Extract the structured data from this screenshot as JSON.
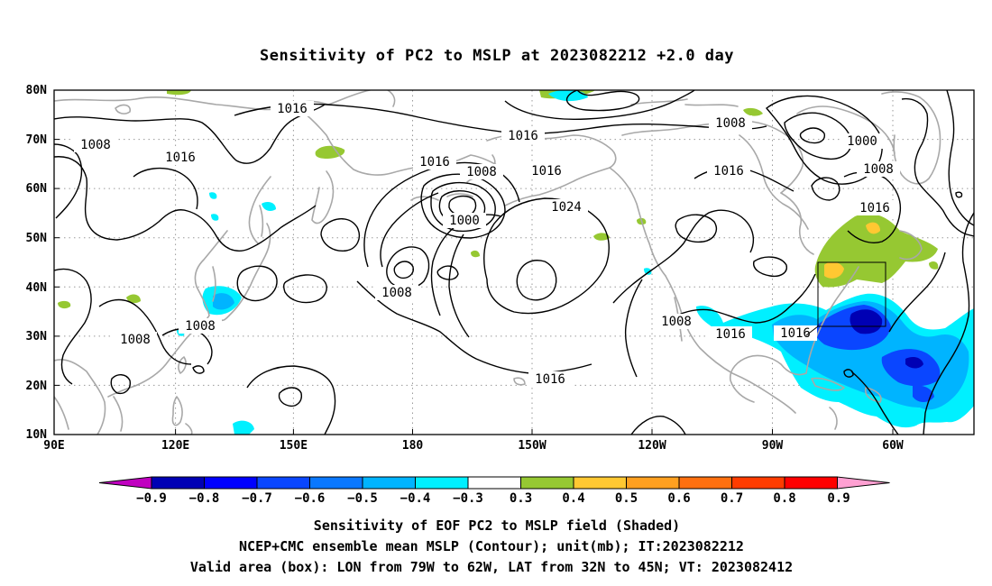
{
  "title": "Sensitivity of PC2 to MSLP at 2023082212 +2.0 day",
  "map": {
    "lon_range": [
      "90E",
      "40W"
    ],
    "lat_range": [
      "10N",
      "80N"
    ],
    "lat_ticks": [
      "80N",
      "70N",
      "60N",
      "50N",
      "40N",
      "30N",
      "20N",
      "10N"
    ],
    "lon_ticks": [
      "90E",
      "120E",
      "150E",
      "180",
      "150W",
      "120W",
      "90W",
      "60W"
    ],
    "valid_box": {
      "lon_from": -79,
      "lon_to": -62,
      "lat_from": 32,
      "lat_to": 45
    }
  },
  "contour_labels": [
    {
      "text": "1016"
    },
    {
      "text": "1008"
    },
    {
      "text": "1016"
    },
    {
      "text": "1016"
    },
    {
      "text": "1016"
    },
    {
      "text": "1008"
    },
    {
      "text": "1016"
    },
    {
      "text": "1008"
    },
    {
      "text": "1000"
    },
    {
      "text": "1024"
    },
    {
      "text": "1000"
    },
    {
      "text": "1016"
    },
    {
      "text": "1008"
    },
    {
      "text": "1016"
    },
    {
      "text": "1008"
    },
    {
      "text": "1008"
    },
    {
      "text": "1008"
    },
    {
      "text": "1008"
    },
    {
      "text": "1016"
    },
    {
      "text": "1016"
    },
    {
      "text": "1016"
    }
  ],
  "colorbar": {
    "colors": [
      "#c000c0",
      "#0000b4",
      "#0000ff",
      "#0a46ff",
      "#0a78ff",
      "#00b4ff",
      "#00f0ff",
      "#ffffff",
      "#96c832",
      "#ffc832",
      "#ffa020",
      "#ff7010",
      "#ff3c00",
      "#ff0000",
      "#ffa0d2"
    ],
    "labels": [
      "−0.9",
      "−0.8",
      "−0.7",
      "−0.6",
      "−0.5",
      "−0.4",
      "−0.3",
      "0.3",
      "0.4",
      "0.5",
      "0.6",
      "0.7",
      "0.8",
      "0.9"
    ]
  },
  "captions": {
    "line1": "Sensitivity of EOF PC2 to MSLP field (Shaded)",
    "line2": "NCEP+CMC ensemble mean MSLP (Contour); unit(mb); IT:2023082212",
    "line3": "Valid area (box): LON from 79W to 62W, LAT from 32N to 45N; VT: 2023082412"
  },
  "colors": {
    "coastline": "#a8a8a8",
    "contour": "#000000",
    "positive_low": "#96c832",
    "positive_mid": "#ffc832",
    "negative_light": "#00f0ff",
    "negative_mid": "#00b4ff",
    "negative_strong": "#0a46ff",
    "negative_max": "#0000b4"
  }
}
